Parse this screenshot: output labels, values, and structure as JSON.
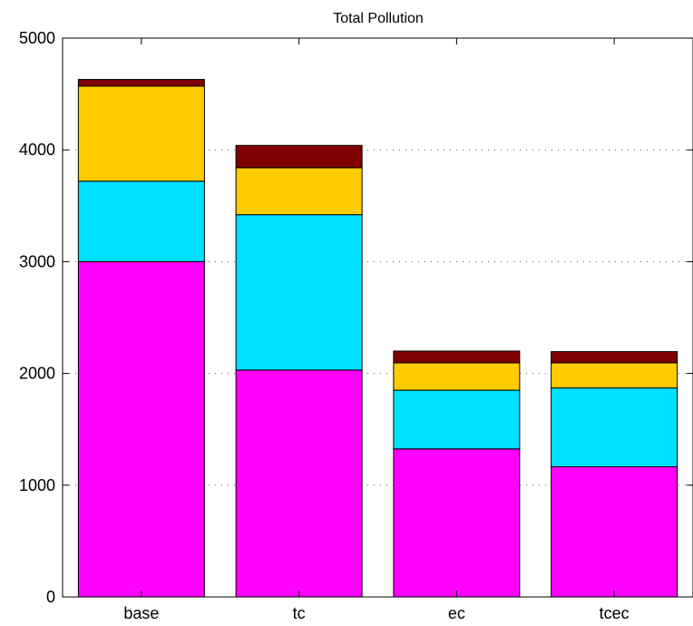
{
  "chart_data": {
    "type": "bar",
    "stacked": true,
    "title": "Total Pollution",
    "xlabel": "",
    "ylabel": "",
    "categories": [
      "base",
      "tc",
      "ec",
      "tcec"
    ],
    "ylim": [
      0,
      5000
    ],
    "yticks": [
      0,
      1000,
      2000,
      3000,
      4000,
      5000
    ],
    "grid": "horizontal-dotted",
    "series": [
      {
        "color": "#ff00ff",
        "values": [
          3000,
          2030,
          1325,
          1165
        ]
      },
      {
        "color": "#00e0ff",
        "values": [
          720,
          1390,
          525,
          705
        ]
      },
      {
        "color": "#ffcc00",
        "values": [
          850,
          420,
          245,
          225
        ]
      },
      {
        "color": "#800000",
        "values": [
          60,
          200,
          105,
          100
        ]
      }
    ]
  }
}
